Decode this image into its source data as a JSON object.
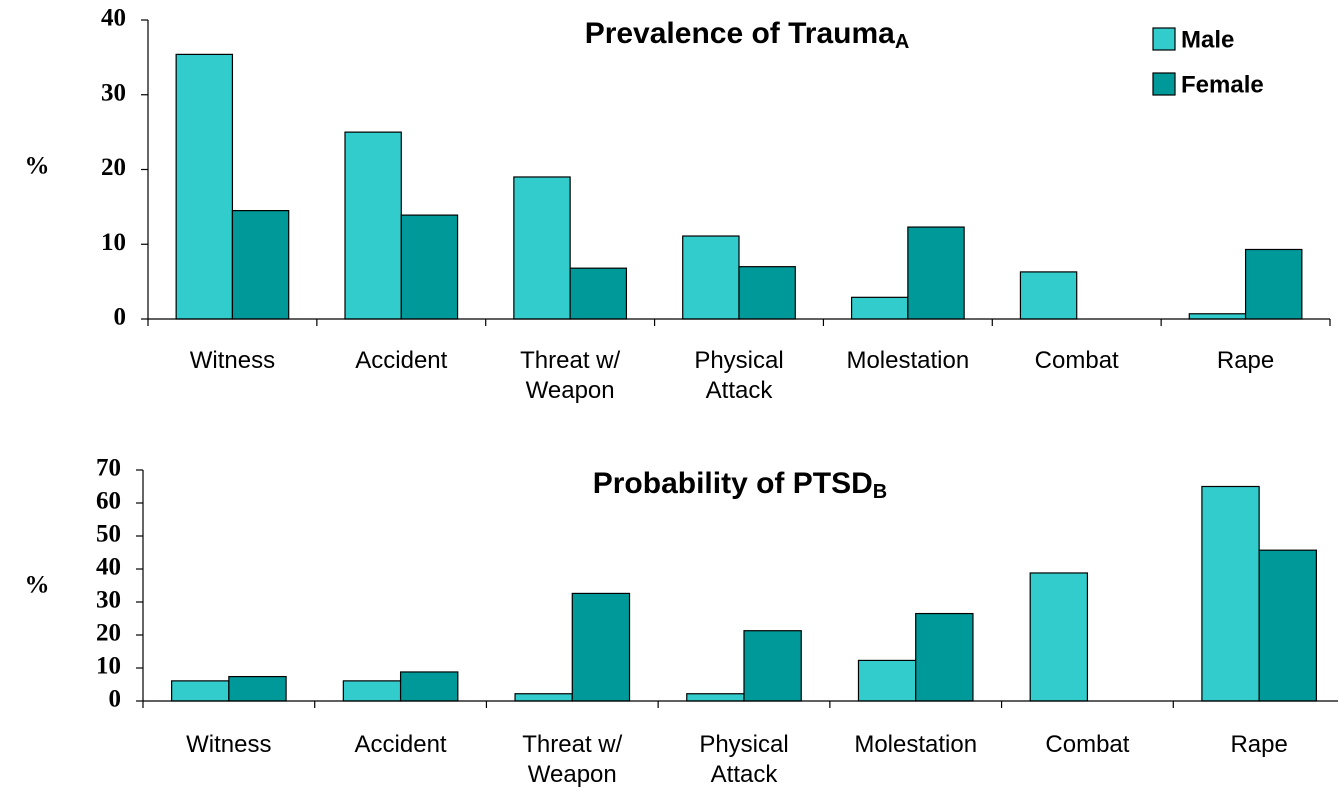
{
  "chart_data": [
    {
      "type": "bar",
      "title": "Prevalence of Trauma",
      "title_subscript": "A",
      "ylabel": "%",
      "categories": [
        "Witness",
        "Accident",
        "Threat w/ Weapon",
        "Physical Attack",
        "Molestation",
        "Combat",
        "Rape"
      ],
      "series": [
        {
          "name": "Male",
          "color": "#33CCCC",
          "values": [
            35.4,
            25,
            19,
            11.1,
            2.9,
            6.3,
            0.7
          ]
        },
        {
          "name": "Female",
          "color": "#009999",
          "values": [
            14.5,
            13.9,
            6.8,
            7,
            12.3,
            null,
            9.3
          ]
        }
      ],
      "ylim": [
        0,
        40
      ],
      "yticks": [
        0,
        10,
        20,
        30,
        40
      ],
      "legend": "top-right"
    },
    {
      "type": "bar",
      "title": "Probability of PTSD",
      "title_subscript": "B",
      "ylabel": "%",
      "categories": [
        "Witness",
        "Accident",
        "Threat w/ Weapon",
        "Physical Attack",
        "Molestation",
        "Combat",
        "Rape"
      ],
      "series": [
        {
          "color": "#33CCCC",
          "values": [
            6.1,
            6.1,
            2.2,
            2.2,
            12.3,
            38.8,
            65
          ]
        },
        {
          "color": "#009999",
          "values": [
            7.4,
            8.8,
            32.6,
            21.3,
            26.5,
            null,
            45.7
          ]
        }
      ],
      "ylim": [
        0,
        70
      ],
      "yticks": [
        0,
        10,
        20,
        30,
        40,
        50,
        60,
        70
      ]
    }
  ]
}
